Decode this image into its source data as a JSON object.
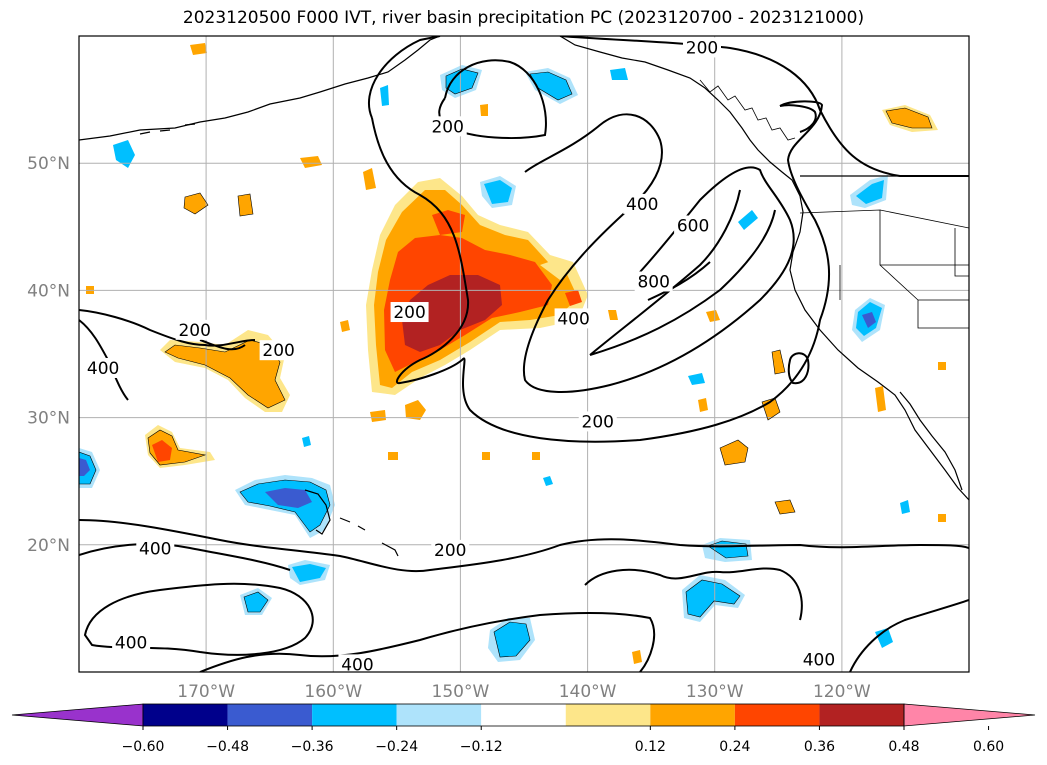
{
  "title": "2023120500 F000 IVT, river basin precipitation PC (2023120700 - 2023121000)",
  "map": {
    "lon_range": [
      180,
      110
    ],
    "lat_range": [
      10,
      60
    ],
    "lon_ticks": [
      {
        "lon": 170,
        "label": "170°W"
      },
      {
        "lon": 160,
        "label": "160°W"
      },
      {
        "lon": 150,
        "label": "150°W"
      },
      {
        "lon": 140,
        "label": "140°W"
      },
      {
        "lon": 130,
        "label": "130°W"
      },
      {
        "lon": 120,
        "label": "120°W"
      }
    ],
    "lat_ticks": [
      {
        "lat": 50,
        "label": "50°N"
      },
      {
        "lat": 40,
        "label": "40°N"
      },
      {
        "lat": 30,
        "label": "30°N"
      },
      {
        "lat": 20,
        "label": "20°N"
      }
    ],
    "tick_label_color": "#808080",
    "gridlines": true
  },
  "contour_labels": [
    {
      "text": "200",
      "lon": 131.0,
      "lat": 59.1
    },
    {
      "text": "200",
      "lon": 151.0,
      "lat": 52.9
    },
    {
      "text": "400",
      "lon": 135.7,
      "lat": 46.8
    },
    {
      "text": "600",
      "lon": 131.7,
      "lat": 45.1
    },
    {
      "text": "800",
      "lon": 134.8,
      "lat": 40.7
    },
    {
      "text": "400",
      "lon": 141.1,
      "lat": 37.8
    },
    {
      "text": "200",
      "lon": 154.0,
      "lat": 38.3
    },
    {
      "text": "200",
      "lon": 164.3,
      "lat": 35.3
    },
    {
      "text": "200",
      "lon": 170.9,
      "lat": 36.9
    },
    {
      "text": "400",
      "lon": 178.1,
      "lat": 33.9
    },
    {
      "text": "200",
      "lon": 139.2,
      "lat": 29.7
    },
    {
      "text": "200",
      "lon": 150.8,
      "lat": 19.6
    },
    {
      "text": "400",
      "lon": 174.0,
      "lat": 19.7
    },
    {
      "text": "400",
      "lon": 175.9,
      "lat": 12.3
    },
    {
      "text": "400",
      "lon": 158.1,
      "lat": 10.6
    },
    {
      "text": "400",
      "lon": 121.8,
      "lat": 11.0
    }
  ],
  "colorbar": {
    "bins": [
      {
        "color": "#9932cc"
      },
      {
        "color": "#00008b"
      },
      {
        "color": "#3a5bd0"
      },
      {
        "color": "#00bfff"
      },
      {
        "color": "#aee3fb"
      },
      {
        "color": "#ffffff"
      },
      {
        "color": "#fde68a"
      },
      {
        "color": "#ffa500"
      },
      {
        "color": "#ff4500"
      },
      {
        "color": "#b22222"
      },
      {
        "color": "#ff85a8"
      }
    ],
    "tick_labels": [
      "−0.60",
      "−0.48",
      "−0.36",
      "−0.24",
      "−0.12",
      "0.12",
      "0.24",
      "0.36",
      "0.48",
      "0.60"
    ],
    "extend": "both"
  },
  "colors": {
    "contour": "#000000",
    "coast": "#000000",
    "grid": "#b0b0b0"
  }
}
